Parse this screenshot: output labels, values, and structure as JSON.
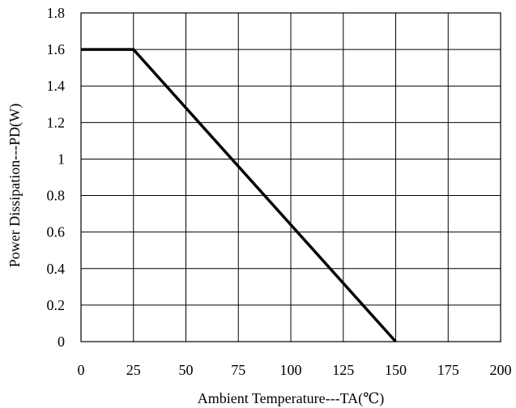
{
  "chart_data": {
    "type": "line",
    "xlabel": "Ambient Temperature---TA(℃)",
    "ylabel": "Power Dissipation---PD(W)",
    "xlim": [
      0,
      200
    ],
    "ylim": [
      0,
      1.8
    ],
    "x_ticks": [
      "0",
      "25",
      "50",
      "75",
      "100",
      "125",
      "150",
      "175",
      "200"
    ],
    "y_ticks": [
      "0",
      "0.2",
      "0.4",
      "0.6",
      "0.8",
      "1",
      "1.2",
      "1.4",
      "1.6",
      "1.8"
    ],
    "grid": true,
    "legend": "none",
    "series": [
      {
        "x": [
          0,
          25,
          150
        ],
        "y": [
          1.6,
          1.6,
          0
        ],
        "color": "#000000"
      }
    ]
  }
}
